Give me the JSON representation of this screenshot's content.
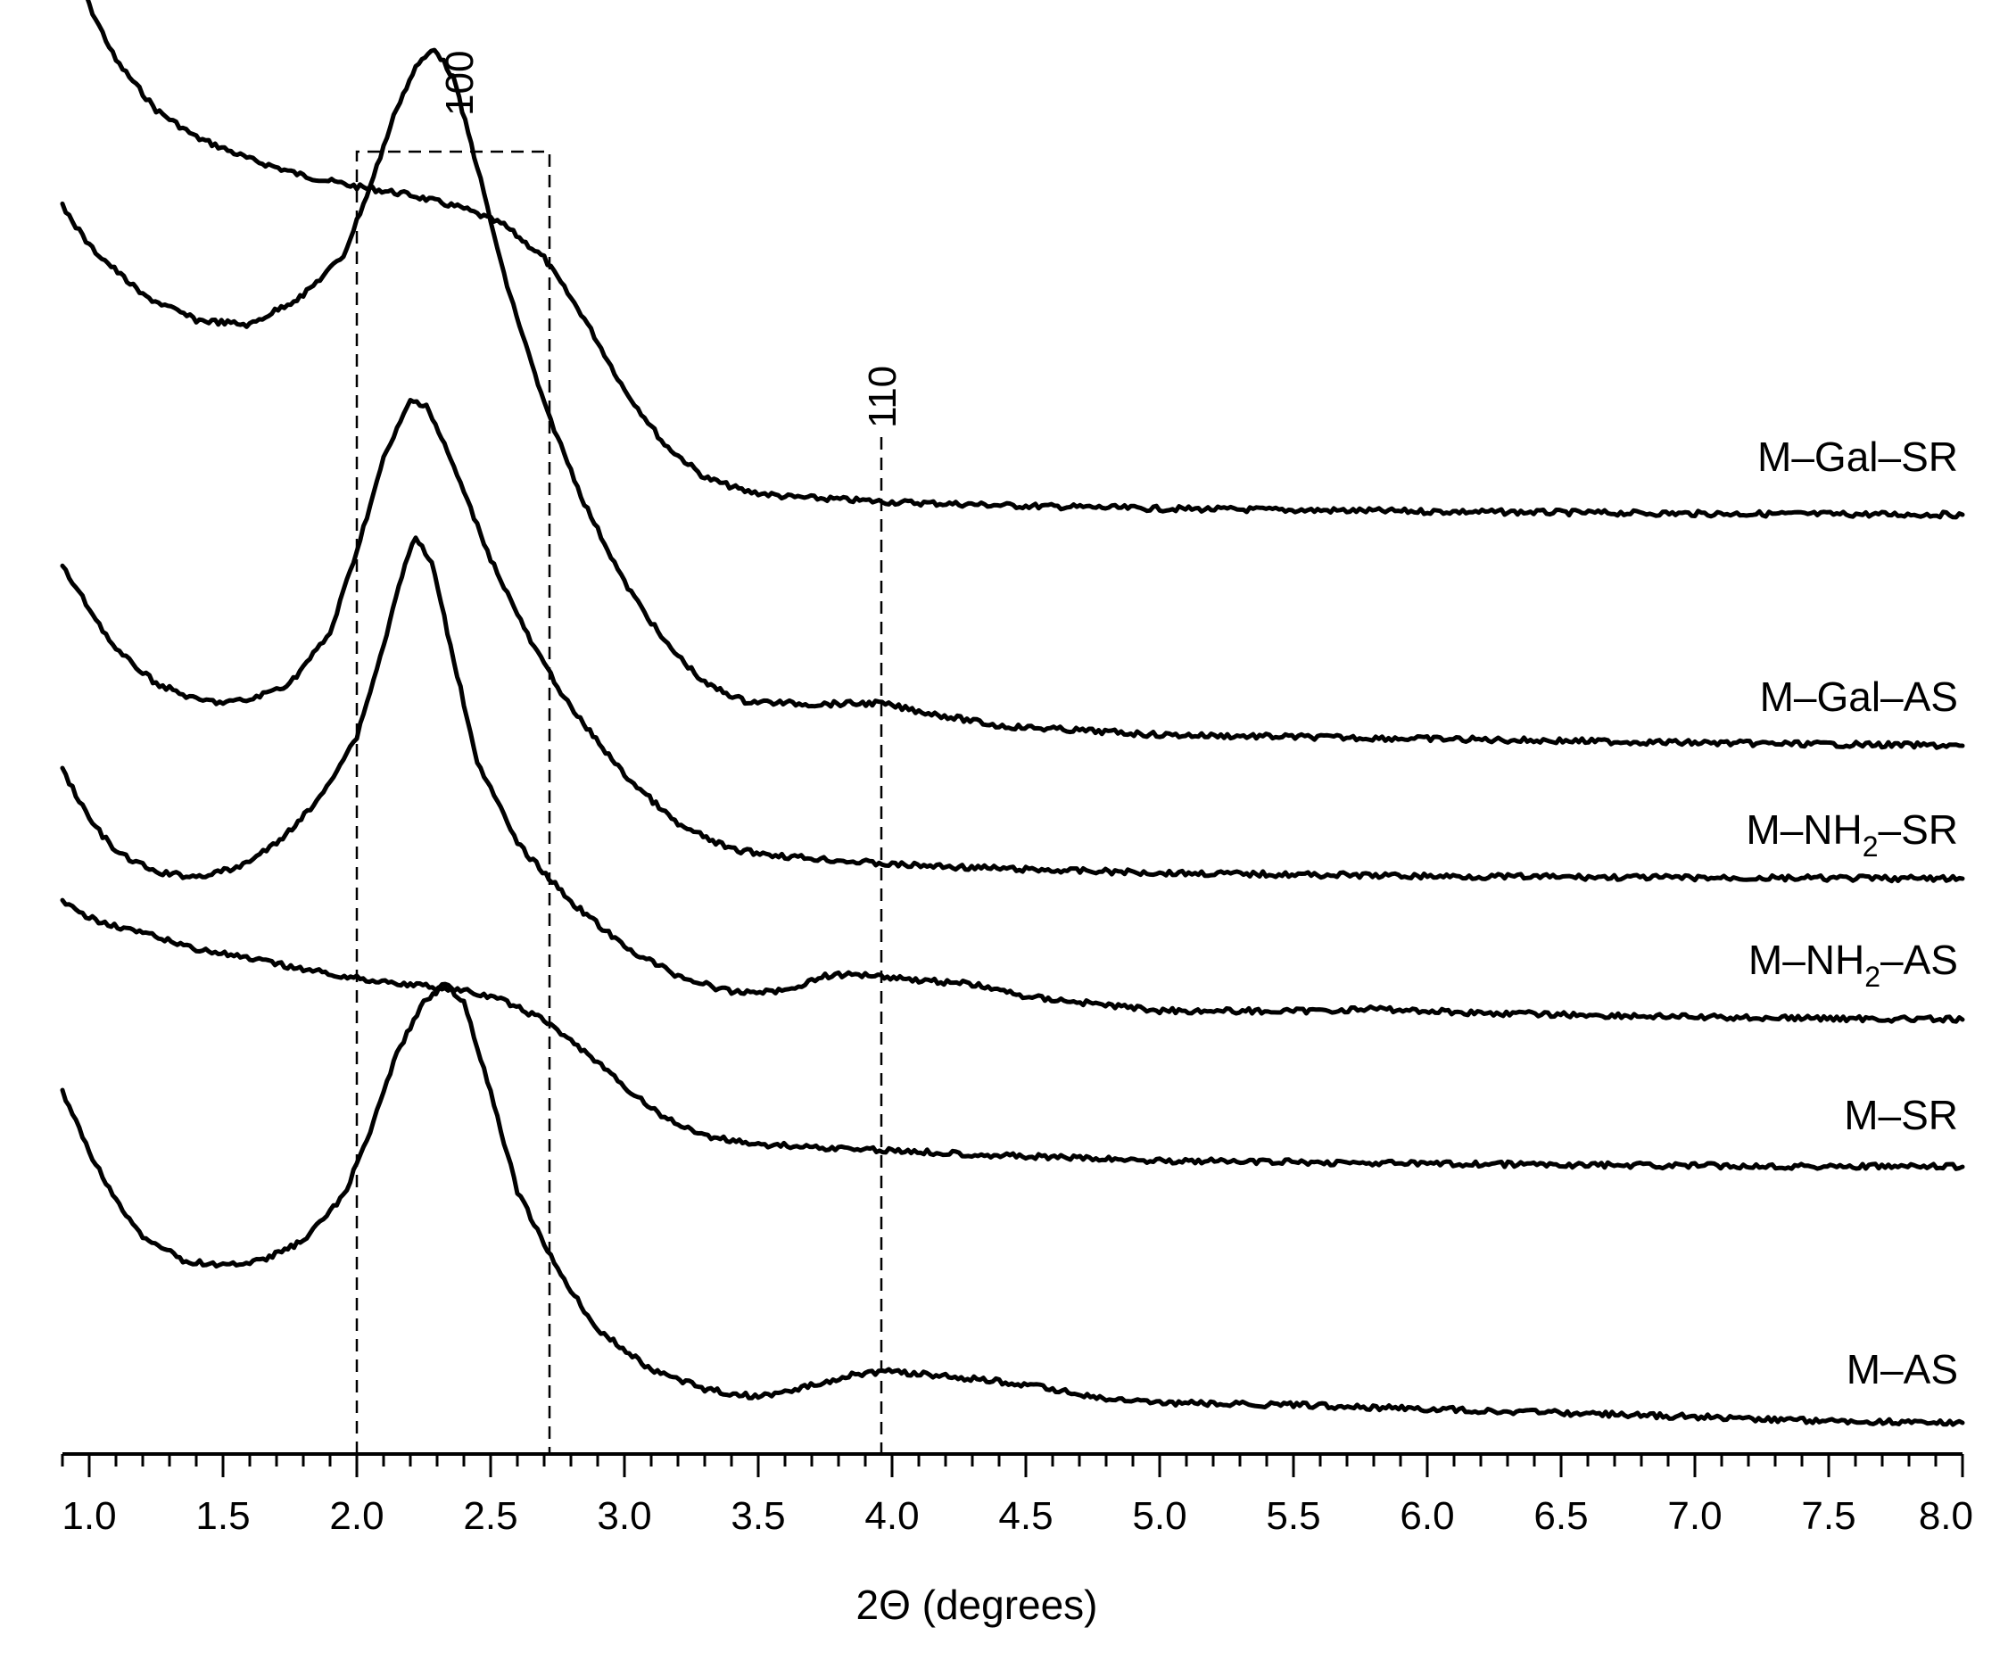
{
  "chart_data": {
    "type": "line",
    "xlabel": "2Θ (degrees)",
    "ylabel": "",
    "xlim": [
      0.9,
      8.0
    ],
    "x_ticks": [
      "1.0",
      "1.5",
      "2.0",
      "2.5",
      "3.0",
      "3.5",
      "4.0",
      "4.5",
      "5.0",
      "5.5",
      "6.0",
      "6.5",
      "7.0",
      "7.5",
      "8.0"
    ],
    "y_units": "stacked relative intensity (arbitrary)",
    "annotations": [
      {
        "label": "100",
        "type": "dashed-box",
        "x_from": 2.0,
        "x_to": 2.72
      },
      {
        "label": "110",
        "type": "dashed-line",
        "x": 3.96
      }
    ],
    "series": [
      {
        "name": "M–Gal–SR",
        "points": [
          [
            0.93,
            1.85
          ],
          [
            1.0,
            1.73
          ],
          [
            1.1,
            1.63
          ],
          [
            1.25,
            1.54
          ],
          [
            1.4,
            1.49
          ],
          [
            1.6,
            1.45
          ],
          [
            1.8,
            1.42
          ],
          [
            2.0,
            1.4
          ],
          [
            2.2,
            1.385
          ],
          [
            2.4,
            1.36
          ],
          [
            2.55,
            1.33
          ],
          [
            2.7,
            1.27
          ],
          [
            2.85,
            1.16
          ],
          [
            3.0,
            1.03
          ],
          [
            3.15,
            0.93
          ],
          [
            3.3,
            0.87
          ],
          [
            3.45,
            0.845
          ],
          [
            3.6,
            0.835
          ],
          [
            4.0,
            0.825
          ],
          [
            4.5,
            0.818
          ],
          [
            5.0,
            0.813
          ],
          [
            6.0,
            0.808
          ],
          [
            7.0,
            0.804
          ],
          [
            8.0,
            0.802
          ]
        ]
      },
      {
        "name": "M–Gal–AS",
        "points": [
          [
            0.9,
            1.4
          ],
          [
            1.0,
            1.36
          ],
          [
            1.2,
            1.31
          ],
          [
            1.4,
            1.285
          ],
          [
            1.6,
            1.28
          ],
          [
            1.8,
            1.31
          ],
          [
            1.95,
            1.35
          ],
          [
            2.05,
            1.42
          ],
          [
            2.15,
            1.5
          ],
          [
            2.22,
            1.54
          ],
          [
            2.29,
            1.56
          ],
          [
            2.36,
            1.53
          ],
          [
            2.45,
            1.44
          ],
          [
            2.55,
            1.33
          ],
          [
            2.7,
            1.2
          ],
          [
            2.85,
            1.1
          ],
          [
            3.0,
            1.02
          ],
          [
            3.15,
            0.96
          ],
          [
            3.3,
            0.918
          ],
          [
            3.45,
            0.9
          ],
          [
            3.7,
            0.897
          ],
          [
            3.95,
            0.898
          ],
          [
            4.1,
            0.89
          ],
          [
            4.4,
            0.875
          ],
          [
            5.0,
            0.866
          ],
          [
            6.0,
            0.862
          ],
          [
            7.0,
            0.858
          ],
          [
            8.0,
            0.855
          ]
        ]
      },
      {
        "name": "M–NH₂–SR",
        "points": [
          [
            0.9,
            1.2
          ],
          [
            1.0,
            1.15
          ],
          [
            1.1,
            1.1
          ],
          [
            1.25,
            1.06
          ],
          [
            1.4,
            1.04
          ],
          [
            1.5,
            1.037
          ],
          [
            1.6,
            1.04
          ],
          [
            1.75,
            1.06
          ],
          [
            1.9,
            1.12
          ],
          [
            2.0,
            1.22
          ],
          [
            2.1,
            1.33
          ],
          [
            2.2,
            1.4
          ],
          [
            2.26,
            1.395
          ],
          [
            2.35,
            1.33
          ],
          [
            2.5,
            1.21
          ],
          [
            2.65,
            1.11
          ],
          [
            2.8,
            1.03
          ],
          [
            3.0,
            0.95
          ],
          [
            3.2,
            0.89
          ],
          [
            3.4,
            0.86
          ],
          [
            3.6,
            0.852
          ],
          [
            4.0,
            0.842
          ],
          [
            4.5,
            0.836
          ],
          [
            5.0,
            0.832
          ],
          [
            6.0,
            0.828
          ],
          [
            7.0,
            0.826
          ],
          [
            8.0,
            0.825
          ]
        ]
      },
      {
        "name": "M–NH₂–AS",
        "points": [
          [
            0.9,
            1.1
          ],
          [
            1.0,
            1.04
          ],
          [
            1.1,
            1.0
          ],
          [
            1.25,
            0.975
          ],
          [
            1.4,
            0.97
          ],
          [
            1.55,
            0.98
          ],
          [
            1.7,
            1.01
          ],
          [
            1.85,
            1.06
          ],
          [
            2.0,
            1.14
          ],
          [
            2.1,
            1.25
          ],
          [
            2.18,
            1.35
          ],
          [
            2.22,
            1.38
          ],
          [
            2.28,
            1.35
          ],
          [
            2.35,
            1.25
          ],
          [
            2.45,
            1.11
          ],
          [
            2.6,
            1.01
          ],
          [
            2.8,
            0.94
          ],
          [
            3.0,
            0.885
          ],
          [
            3.2,
            0.85
          ],
          [
            3.4,
            0.83
          ],
          [
            3.6,
            0.832
          ],
          [
            3.75,
            0.85
          ],
          [
            3.9,
            0.852
          ],
          [
            4.1,
            0.845
          ],
          [
            4.3,
            0.84
          ],
          [
            4.5,
            0.825
          ],
          [
            5.0,
            0.808
          ],
          [
            5.5,
            0.807
          ],
          [
            5.8,
            0.81
          ],
          [
            6.2,
            0.805
          ],
          [
            7.0,
            0.8
          ],
          [
            8.0,
            0.797
          ]
        ]
      },
      {
        "name": "M–SR",
        "points": [
          [
            0.9,
            1.0
          ],
          [
            1.0,
            0.985
          ],
          [
            1.2,
            0.97
          ],
          [
            1.4,
            0.955
          ],
          [
            1.6,
            0.945
          ],
          [
            1.8,
            0.935
          ],
          [
            2.0,
            0.926
          ],
          [
            2.2,
            0.92
          ],
          [
            2.4,
            0.914
          ],
          [
            2.55,
            0.904
          ],
          [
            2.7,
            0.885
          ],
          [
            2.85,
            0.855
          ],
          [
            3.0,
            0.82
          ],
          [
            3.15,
            0.79
          ],
          [
            3.3,
            0.772
          ],
          [
            3.5,
            0.764
          ],
          [
            3.8,
            0.76
          ],
          [
            4.0,
            0.758
          ],
          [
            4.5,
            0.752
          ],
          [
            5.0,
            0.748
          ],
          [
            6.0,
            0.745
          ],
          [
            7.0,
            0.743
          ],
          [
            8.0,
            0.742
          ]
        ]
      },
      {
        "name": "M–AS",
        "points": [
          [
            0.9,
            1.1
          ],
          [
            1.0,
            1.04
          ],
          [
            1.1,
            0.99
          ],
          [
            1.2,
            0.955
          ],
          [
            1.35,
            0.93
          ],
          [
            1.5,
            0.925
          ],
          [
            1.65,
            0.93
          ],
          [
            1.8,
            0.95
          ],
          [
            1.95,
            0.995
          ],
          [
            2.05,
            1.06
          ],
          [
            2.15,
            1.14
          ],
          [
            2.25,
            1.19
          ],
          [
            2.33,
            1.21
          ],
          [
            2.4,
            1.19
          ],
          [
            2.5,
            1.1
          ],
          [
            2.6,
            1.0
          ],
          [
            2.75,
            0.92
          ],
          [
            2.9,
            0.86
          ],
          [
            3.1,
            0.82
          ],
          [
            3.3,
            0.8
          ],
          [
            3.5,
            0.792
          ],
          [
            3.65,
            0.8
          ],
          [
            3.85,
            0.815
          ],
          [
            4.0,
            0.818
          ],
          [
            4.2,
            0.813
          ],
          [
            4.4,
            0.808
          ],
          [
            4.6,
            0.8
          ],
          [
            4.8,
            0.79
          ],
          [
            5.0,
            0.786
          ],
          [
            5.5,
            0.784
          ],
          [
            6.0,
            0.78
          ],
          [
            6.5,
            0.776
          ],
          [
            7.0,
            0.772
          ],
          [
            7.5,
            0.768
          ],
          [
            8.0,
            0.766
          ]
        ]
      }
    ]
  }
}
